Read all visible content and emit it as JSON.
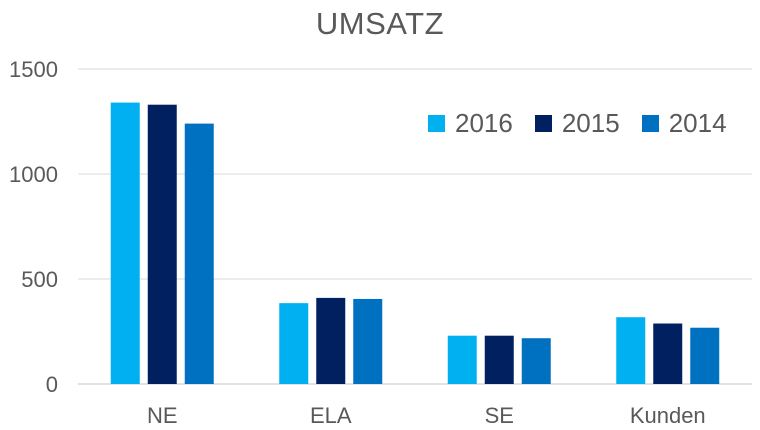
{
  "chart_data": {
    "type": "bar",
    "title": "UMSATZ",
    "categories": [
      "NE",
      "ELA",
      "SE",
      "Kunden"
    ],
    "series": [
      {
        "name": "2016",
        "color": "#00B0F0",
        "values": [
          1340,
          385,
          230,
          318
        ]
      },
      {
        "name": "2015",
        "color": "#002060",
        "values": [
          1330,
          410,
          230,
          288
        ]
      },
      {
        "name": "2014",
        "color": "#0070C0",
        "values": [
          1240,
          405,
          218,
          268
        ]
      }
    ],
    "ylim": [
      0,
      1500
    ],
    "yticks": [
      "0",
      "500",
      "1000",
      "1500"
    ],
    "xlabel": "",
    "ylabel": "",
    "grid": true,
    "legend_position": "top-right"
  }
}
